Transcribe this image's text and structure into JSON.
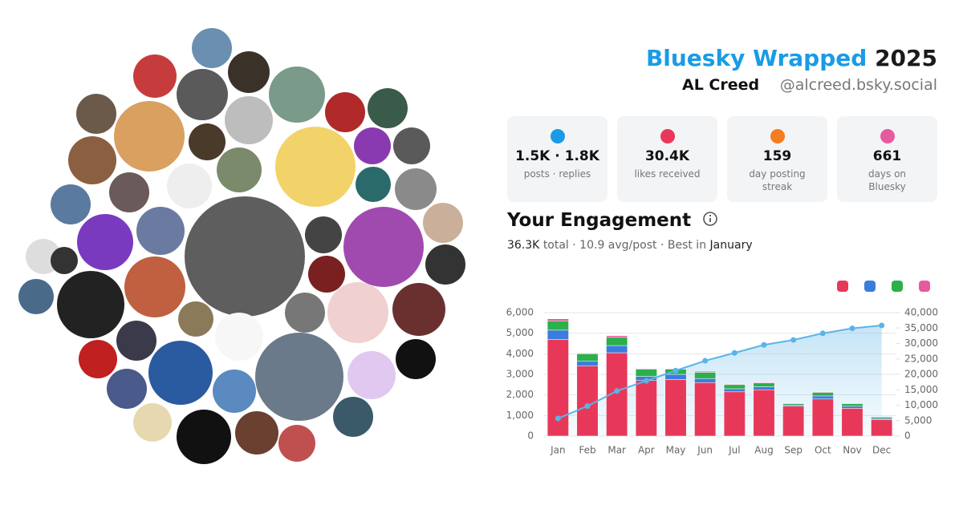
{
  "header": {
    "brand": "Bluesky Wrapped",
    "year": "2025",
    "name": "AL Creed",
    "handle": "@alcreed.bsky.social"
  },
  "stats": [
    {
      "value": "1.5K · 1.8K",
      "label": "posts · replies",
      "color": "#1a9be6"
    },
    {
      "value": "30.4K",
      "label": "likes received",
      "color": "#e8385a"
    },
    {
      "value": "159",
      "label": "day posting streak",
      "color": "#f57c1f"
    },
    {
      "value": "661",
      "label": "days on Bluesky",
      "color": "#e85aa0"
    }
  ],
  "engagement": {
    "title": "Your Engagement",
    "total": "36.3K",
    "middle": "total · 10.9 avg/post · Best in",
    "best": "January"
  },
  "chart_data": {
    "type": "bar",
    "stacked": true,
    "categories": [
      "Jan",
      "Feb",
      "Mar",
      "Apr",
      "May",
      "Jun",
      "Jul",
      "Aug",
      "Sep",
      "Oct",
      "Nov",
      "Dec"
    ],
    "series": [
      {
        "color": "#e8385a",
        "values": [
          4700,
          3400,
          4050,
          2700,
          2750,
          2600,
          2150,
          2250,
          1450,
          1800,
          1350,
          800
        ]
      },
      {
        "color": "#3b7ddd",
        "values": [
          450,
          250,
          350,
          200,
          250,
          200,
          150,
          150,
          60,
          150,
          100,
          60
        ]
      },
      {
        "color": "#2bb04a",
        "values": [
          450,
          350,
          400,
          350,
          250,
          300,
          200,
          180,
          70,
          170,
          130,
          70
        ]
      },
      {
        "color": "#e85aa0",
        "values": [
          100,
          30,
          80,
          30,
          30,
          50,
          30,
          30,
          20,
          30,
          20,
          20
        ]
      },
      {
        "type": "line",
        "axis": "y2",
        "color": "#5ab4e8",
        "values": [
          5700,
          9700,
          14600,
          17900,
          21200,
          24400,
          26950,
          29550,
          31150,
          33300,
          34900,
          35850
        ]
      }
    ],
    "ylim": [
      0,
      6000
    ],
    "yticks": [
      0,
      {
        "value": 1000,
        "label": "1,000"
      },
      {
        "value": 2000,
        "label": "2,000"
      },
      {
        "value": 3000,
        "label": "3,000"
      },
      {
        "value": 4000,
        "label": "4,000"
      },
      {
        "value": 5000,
        "label": "5,000"
      },
      {
        "value": 6000,
        "label": "6,000"
      }
    ],
    "y2lim": [
      0,
      40000
    ],
    "y2ticks": [
      0,
      {
        "value": 5000,
        "label": "5,000"
      },
      {
        "value": 10000,
        "label": "10,000"
      },
      {
        "value": 15000,
        "label": "15,000"
      },
      {
        "value": 20000,
        "label": "20,000"
      },
      {
        "value": 25000,
        "label": "25,000"
      },
      {
        "value": 30000,
        "label": "30,000"
      },
      {
        "value": 35000,
        "label": "35,000"
      },
      {
        "value": 40000,
        "label": "40,000"
      }
    ],
    "grid": true
  }
}
